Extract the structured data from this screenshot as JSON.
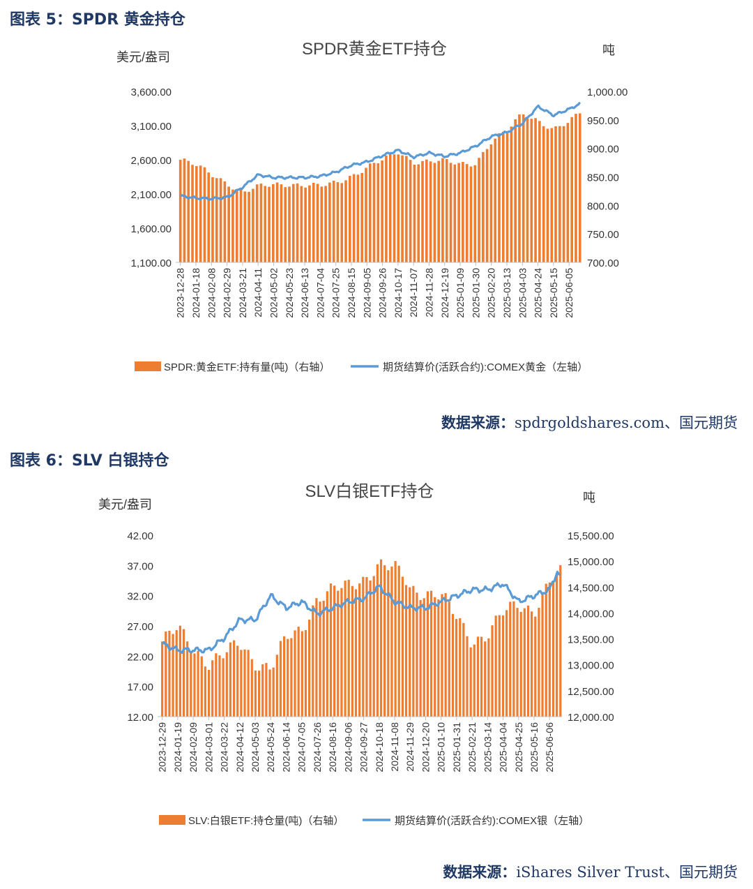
{
  "figure1": {
    "caption": "图表 5：SPDR 黄金持仓",
    "source_label": "数据来源：",
    "source_text": "spdrgoldshares.com、国元期货"
  },
  "figure2": {
    "caption": "图表 6：SLV 白银持仓",
    "source_label": "数据来源：",
    "source_text": "iShares Silver Trust、国元期货"
  },
  "colors": {
    "bar": "#ed7d31",
    "line": "#5b9bd5",
    "caption": "#1f3864"
  },
  "chart_data": [
    {
      "type": "bar+line",
      "title": "SPDR黄金ETF持仓",
      "left_unit": "美元/盎司",
      "right_unit": "吨",
      "y_left": {
        "min": 1100,
        "max": 3600,
        "ticks": [
          "3,600.00",
          "3,100.00",
          "2,600.00",
          "2,100.00",
          "1,600.00",
          "1,100.00"
        ]
      },
      "y_right": {
        "min": 700,
        "max": 1000,
        "ticks": [
          "1,000.00",
          "950.00",
          "900.00",
          "850.00",
          "800.00",
          "750.00",
          "700.00"
        ]
      },
      "x_ticks": [
        "2023-12-28",
        "2024-01-18",
        "2024-02-08",
        "2024-02-29",
        "2024-03-21",
        "2024-04-11",
        "2024-05-02",
        "2024-05-23",
        "2024-06-13",
        "2024-07-04",
        "2024-07-25",
        "2024-08-15",
        "2024-09-05",
        "2024-09-26",
        "2024-10-17",
        "2024-11-07",
        "2024-11-28",
        "2024-12-19",
        "2025-01-09",
        "2025-01-30",
        "2025-02-20",
        "2025-03-13",
        "2025-04-03",
        "2025-04-24",
        "2025-05-15",
        "2025-06-05"
      ],
      "series": [
        {
          "name": "SPDR:黄金ETF:持有量(吨)（右轴）",
          "kind": "bar",
          "axis": "right",
          "x": [
            0,
            1,
            2,
            3,
            4,
            5,
            6,
            7,
            8,
            9,
            10,
            11,
            12,
            13,
            14,
            15,
            16,
            17,
            18,
            19,
            20,
            21,
            22,
            23,
            24,
            25,
            25.7
          ],
          "values": [
            880,
            870,
            855,
            840,
            822,
            832,
            837,
            838,
            835,
            833,
            840,
            852,
            866,
            879,
            894,
            877,
            877,
            877,
            873,
            875,
            911,
            930,
            962,
            950,
            932,
            945,
            963
          ]
        },
        {
          "name": "期货结算价(活跃合约):COMEX黄金（左轴）",
          "kind": "line",
          "axis": "left",
          "x": [
            0,
            1,
            2,
            3,
            4,
            5,
            6,
            7,
            8,
            9,
            10,
            11,
            12,
            13,
            14,
            15,
            16,
            17,
            18,
            19,
            20,
            21,
            22,
            23,
            24,
            25,
            25.7
          ],
          "values": [
            2070,
            2040,
            2030,
            2050,
            2200,
            2380,
            2340,
            2340,
            2340,
            2360,
            2420,
            2520,
            2570,
            2660,
            2740,
            2640,
            2700,
            2650,
            2700,
            2800,
            2940,
            3000,
            3130,
            3380,
            3250,
            3340,
            3420
          ]
        }
      ]
    },
    {
      "type": "bar+line",
      "title": "SLV白银ETF持仓",
      "left_unit": "美元/盎司",
      "right_unit": "吨",
      "y_left": {
        "min": 12,
        "max": 42,
        "ticks": [
          "42.00",
          "37.00",
          "32.00",
          "27.00",
          "22.00",
          "17.00",
          "12.00"
        ]
      },
      "y_right": {
        "min": 12000,
        "max": 15500,
        "ticks": [
          "15,500.00",
          "15,000.00",
          "14,500.00",
          "14,000.00",
          "13,500.00",
          "13,000.00",
          "12,500.00",
          "12,000.00"
        ]
      },
      "x_ticks": [
        "2023-12-29",
        "2024-01-19",
        "2024-02-09",
        "2024-03-01",
        "2024-03-22",
        "2024-04-12",
        "2024-05-03",
        "2024-05-24",
        "2024-06-14",
        "2024-07-05",
        "2024-07-26",
        "2024-08-16",
        "2024-09-06",
        "2024-09-27",
        "2024-10-18",
        "2024-11-08",
        "2024-11-29",
        "2024-12-20",
        "2025-01-10",
        "2025-01-31",
        "2025-02-21",
        "2025-03-14",
        "2025-04-04",
        "2025-04-25",
        "2025-05-16",
        "2025-06-06"
      ],
      "series": [
        {
          "name": "SLV:白银ETF:持仓量(吨)（右轴）",
          "kind": "bar",
          "axis": "right",
          "x": [
            0,
            1,
            2,
            3,
            4,
            5,
            6,
            7,
            8,
            9,
            10,
            11,
            12,
            13,
            14,
            15,
            15.6,
            16,
            17,
            18,
            19,
            20,
            21,
            22,
            23,
            24,
            25,
            25.7
          ],
          "values": [
            13450,
            13700,
            13300,
            13050,
            13200,
            13400,
            13050,
            12950,
            13500,
            13650,
            14300,
            14450,
            14500,
            14650,
            14950,
            14850,
            14700,
            14450,
            14400,
            14350,
            13900,
            13450,
            13600,
            14000,
            14150,
            14050,
            14600,
            14750
          ]
        },
        {
          "name": "期货结算价(活跃合约):COMEX银（左轴）",
          "kind": "line",
          "axis": "left",
          "x": [
            0,
            1,
            2,
            3,
            4,
            5,
            6,
            7,
            8,
            9,
            10,
            11,
            12,
            13,
            14,
            15,
            16,
            17,
            18,
            19,
            20,
            21,
            22,
            23,
            24,
            25,
            25.5,
            25.7
          ],
          "values": [
            24,
            23,
            23,
            23,
            25,
            28,
            28,
            32,
            30,
            31,
            29,
            30,
            31,
            31.5,
            33.5,
            31,
            30,
            30,
            31,
            32,
            33,
            33,
            34,
            31,
            32,
            33,
            36,
            35
          ]
        }
      ]
    }
  ]
}
